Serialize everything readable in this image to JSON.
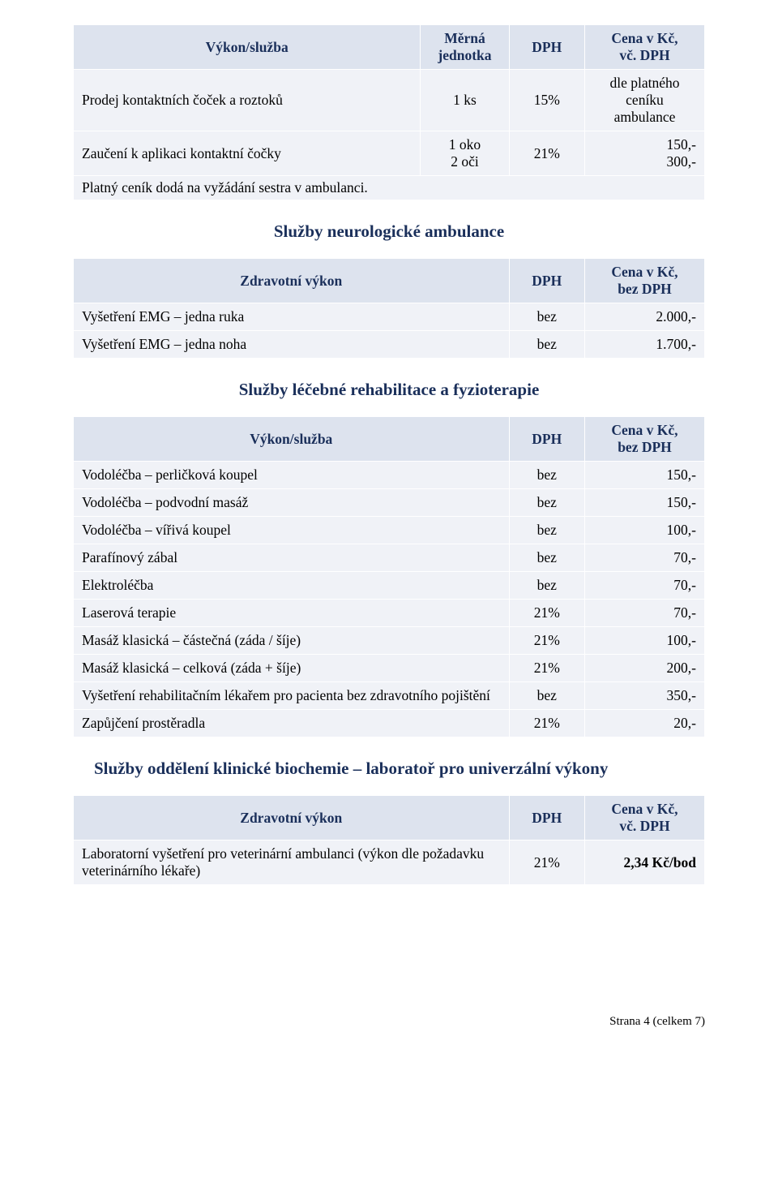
{
  "colors": {
    "header_bg": "#dde3ee",
    "cell_bg": "#f0f2f7",
    "border": "#ffffff",
    "heading_text": "#1a2f5a",
    "body_text": "#000000"
  },
  "typography": {
    "body_family": "Times New Roman",
    "body_size_pt": 13,
    "heading_size_pt": 15,
    "heading_weight": "bold"
  },
  "table1": {
    "headers": {
      "service": "Výkon/služba",
      "unit": "Měrná\njednotka",
      "vat": "DPH",
      "price": "Cena v Kč,\nvč. DPH"
    },
    "rows": [
      {
        "service": "Prodej kontaktních čoček a roztoků",
        "unit": "1 ks",
        "vat": "15%",
        "price": "dle platného\nceníku\nambulance"
      },
      {
        "service": "Zaučení k aplikaci kontaktní čočky",
        "unit": "1 oko\n2 oči",
        "vat": "21%",
        "price": "150,-\n300,-"
      }
    ],
    "note_row": "Platný ceník dodá na vyžádání sestra v ambulanci."
  },
  "section2": {
    "title": "Služby neurologické ambulance",
    "headers": {
      "service": "Zdravotní výkon",
      "vat": "DPH",
      "price": "Cena v Kč,\nbez DPH"
    },
    "rows": [
      {
        "service": "Vyšetření EMG – jedna ruka",
        "vat": "bez",
        "price": "2.000,-"
      },
      {
        "service": "Vyšetření EMG – jedna noha",
        "vat": "bez",
        "price": "1.700,-"
      }
    ]
  },
  "section3": {
    "title": "Služby léčebné rehabilitace a fyzioterapie",
    "headers": {
      "service": "Výkon/služba",
      "vat": "DPH",
      "price": "Cena v Kč,\nbez DPH"
    },
    "rows": [
      {
        "service": "Vodoléčba – perličková koupel",
        "vat": "bez",
        "price": "150,-"
      },
      {
        "service": "Vodoléčba – podvodní masáž",
        "vat": "bez",
        "price": "150,-"
      },
      {
        "service": "Vodoléčba – vířivá koupel",
        "vat": "bez",
        "price": "100,-"
      },
      {
        "service": "Parafínový zábal",
        "vat": "bez",
        "price": "70,-"
      },
      {
        "service": "Elektroléčba",
        "vat": "bez",
        "price": "70,-"
      },
      {
        "service": "Laserová terapie",
        "vat": "21%",
        "price": "70,-"
      },
      {
        "service": "Masáž klasická – částečná (záda / šíje)",
        "vat": "21%",
        "price": "100,-"
      },
      {
        "service": "Masáž klasická – celková (záda + šíje)",
        "vat": "21%",
        "price": "200,-"
      },
      {
        "service": "Vyšetření rehabilitačním lékařem pro pacienta bez zdravotního pojištění",
        "vat": "bez",
        "price": "350,-"
      },
      {
        "service": "Zapůjčení prostěradla",
        "vat": "21%",
        "price": "20,-"
      }
    ]
  },
  "section4": {
    "title": "Služby oddělení klinické biochemie – laboratoř pro univerzální výkony",
    "headers": {
      "service": "Zdravotní výkon",
      "vat": "DPH",
      "price": "Cena v Kč,\nvč. DPH"
    },
    "rows": [
      {
        "service": "Laboratorní vyšetření pro veterinární ambulanci (výkon dle požadavku veterinárního lékaře)",
        "vat": "21%",
        "price": "2,34 Kč/bod"
      }
    ]
  },
  "footer": "Strana 4 (celkem 7)"
}
